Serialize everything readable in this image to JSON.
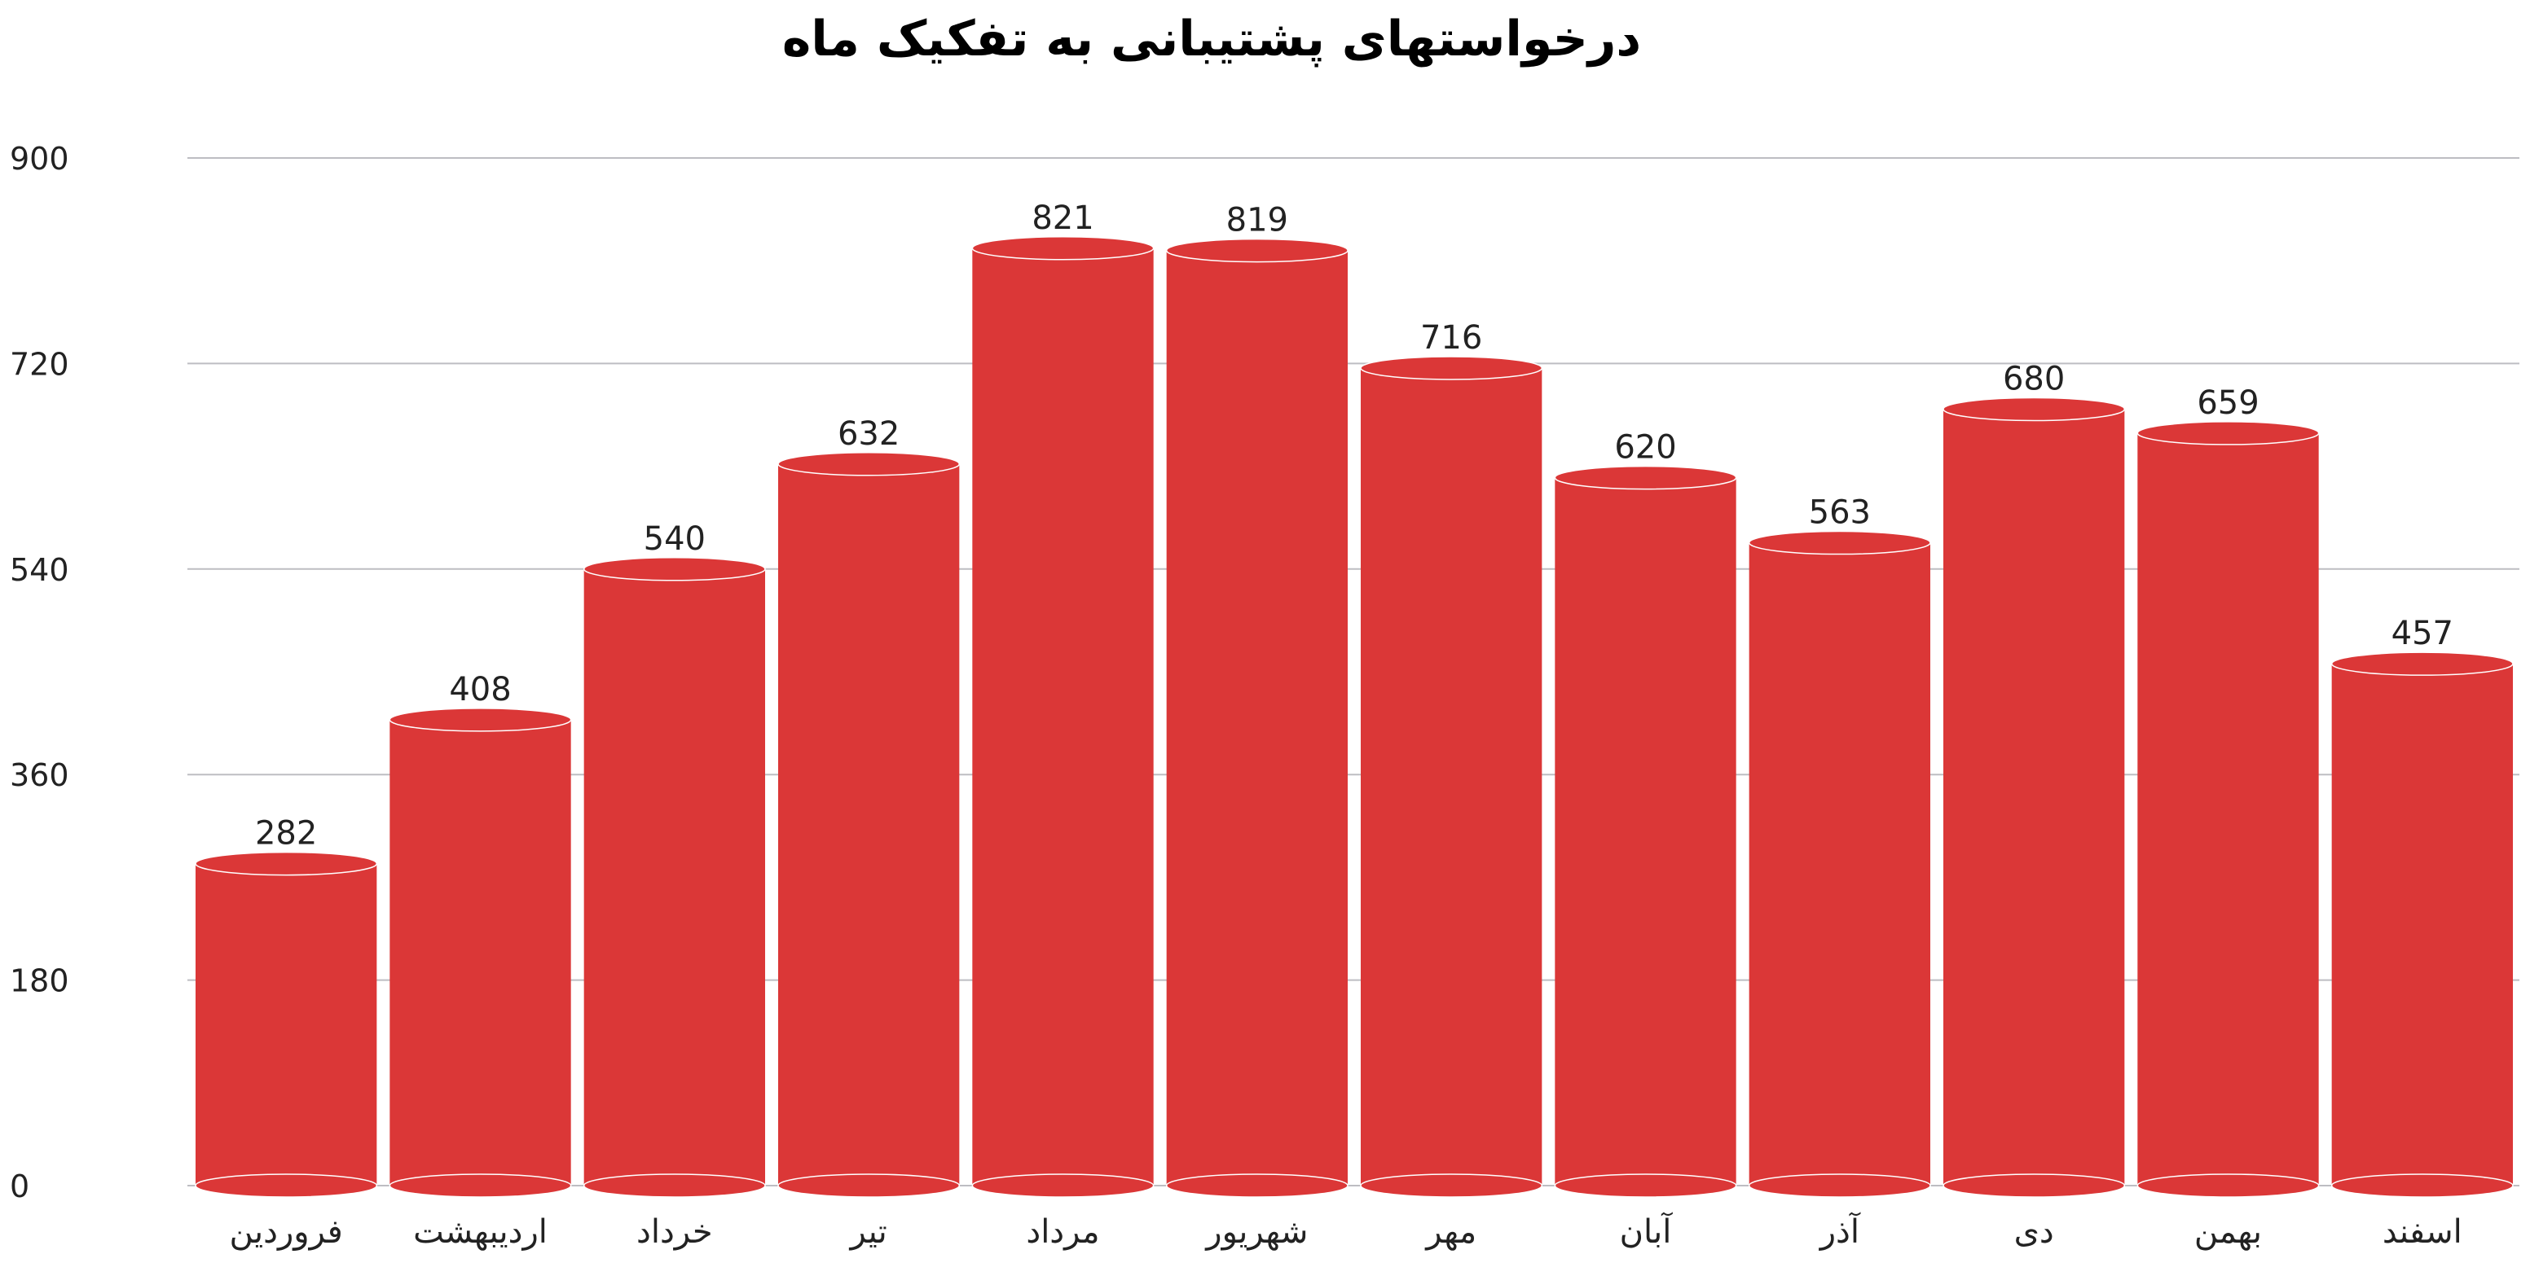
{
  "chart_data": {
    "type": "bar",
    "title": "درخواستهای پشتیبانی به تفکیک ماه",
    "categories": [
      "فروردین",
      "اردیبهشت",
      "خرداد",
      "تیر",
      "مرداد",
      "شهریور",
      "مهر",
      "آبان",
      "آذر",
      "دی",
      "بهمن",
      "اسفند"
    ],
    "values": [
      282,
      408,
      540,
      632,
      821,
      819,
      716,
      620,
      563,
      680,
      659,
      457
    ],
    "y_ticks": [
      "0",
      "180",
      "360",
      "540",
      "720",
      "900"
    ],
    "ylim": [
      0,
      900
    ],
    "grid": true,
    "bar_style": "cylinder",
    "colors": {
      "bar": "#DB3737",
      "bar_edge": "#ffffff",
      "grid": "#bdbdc2",
      "text": "#222222"
    }
  }
}
